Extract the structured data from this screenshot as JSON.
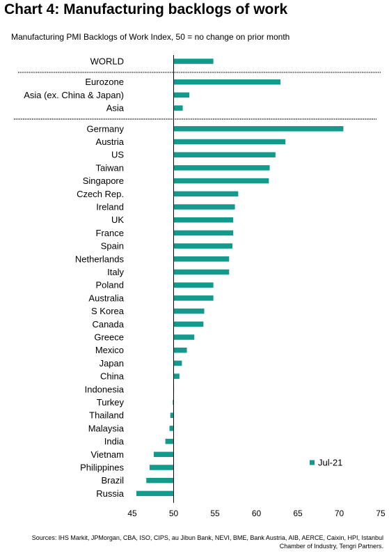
{
  "title": "Chart 4: Manufacturing backlogs of work",
  "subtitle": "Manufacturing PMI Backlogs of Work Index, 50 = no change on prior month",
  "sources": "Sources: IHS Markit, JPMorgan, CBA, ISO, CIPS, au Jibun Bank, NEVI, BME, Bank Austria, AIB, AERCE, Caixin, HPI, Istanbul Chamber of Industry, Tengri Partners.",
  "chart_data": {
    "type": "bar",
    "orientation": "horizontal",
    "baseline": 50,
    "xlim": [
      45,
      75
    ],
    "xticks": [
      45,
      50,
      55,
      60,
      65,
      70,
      75
    ],
    "legend_position": "right",
    "color": "#139a8c",
    "series": [
      {
        "name": "Jul-21"
      }
    ],
    "groups": [
      {
        "items": [
          {
            "label": "WORLD",
            "value": 54.8
          }
        ]
      },
      {
        "items": [
          {
            "label": "Eurozone",
            "value": 62.9
          },
          {
            "label": "Asia (ex. China & Japan)",
            "value": 51.9
          },
          {
            "label": "Asia",
            "value": 51.1
          }
        ]
      },
      {
        "items": [
          {
            "label": "Germany",
            "value": 70.5
          },
          {
            "label": "Austria",
            "value": 63.5
          },
          {
            "label": "US",
            "value": 62.3
          },
          {
            "label": "Taiwan",
            "value": 61.6
          },
          {
            "label": "Singapore",
            "value": 61.5
          },
          {
            "label": "Czech Rep.",
            "value": 57.8
          },
          {
            "label": "Ireland",
            "value": 57.4
          },
          {
            "label": "UK",
            "value": 57.2
          },
          {
            "label": "France",
            "value": 57.2
          },
          {
            "label": "Spain",
            "value": 57.1
          },
          {
            "label": "Netherlands",
            "value": 56.7
          },
          {
            "label": "Italy",
            "value": 56.7
          },
          {
            "label": "Poland",
            "value": 54.8
          },
          {
            "label": "Australia",
            "value": 54.8
          },
          {
            "label": "S Korea",
            "value": 53.7
          },
          {
            "label": "Canada",
            "value": 53.6
          },
          {
            "label": "Greece",
            "value": 52.5
          },
          {
            "label": "Mexico",
            "value": 51.6
          },
          {
            "label": "Japan",
            "value": 51.0
          },
          {
            "label": "China",
            "value": 50.7
          },
          {
            "label": "Indonesia",
            "value": 50.0
          },
          {
            "label": "Turkey",
            "value": 49.9
          },
          {
            "label": "Thailand",
            "value": 49.6
          },
          {
            "label": "Malaysia",
            "value": 49.5
          },
          {
            "label": "India",
            "value": 49.0
          },
          {
            "label": "Vietnam",
            "value": 47.6
          },
          {
            "label": "Philippines",
            "value": 47.1
          },
          {
            "label": "Brazil",
            "value": 46.7
          },
          {
            "label": "Russia",
            "value": 45.5
          }
        ]
      }
    ]
  }
}
